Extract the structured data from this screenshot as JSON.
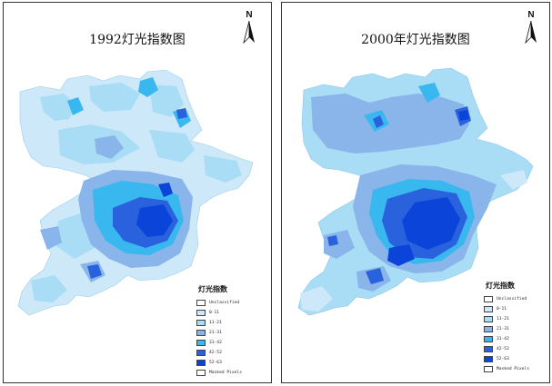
{
  "maps": [
    {
      "id": "1992",
      "title": "1992灯光指数图",
      "north_label": "N",
      "legend": {
        "title": "灯光指数",
        "items": [
          {
            "label": "Unclassified",
            "color": "#ffffff"
          },
          {
            "label": "0-11",
            "color": "#cde8f8"
          },
          {
            "label": "11-21",
            "color": "#a9dcf5"
          },
          {
            "label": "21-31",
            "color": "#8ab5ea"
          },
          {
            "label": "31-42",
            "color": "#38b8ee"
          },
          {
            "label": "42-52",
            "color": "#2a62de"
          },
          {
            "label": "52-63",
            "color": "#0a44d8"
          },
          {
            "label": "Masked Pixels",
            "color": "#ffffff"
          }
        ]
      }
    },
    {
      "id": "2000",
      "title": "2000年灯光指数图",
      "north_label": "N",
      "legend": {
        "title": "灯光指数",
        "items": [
          {
            "label": "Unclassified",
            "color": "#ffffff"
          },
          {
            "label": "0-11",
            "color": "#cde8f8"
          },
          {
            "label": "11-21",
            "color": "#a9dcf5"
          },
          {
            "label": "21-31",
            "color": "#8ab5ea"
          },
          {
            "label": "31-42",
            "color": "#38b8ee"
          },
          {
            "label": "42-52",
            "color": "#2a62de"
          },
          {
            "label": "52-63",
            "color": "#0a44d8"
          },
          {
            "label": "Masked Pixels",
            "color": "#ffffff"
          }
        ]
      }
    }
  ],
  "colors": {
    "class_0_11": "#cde8f8",
    "class_11_21": "#a9dcf5",
    "class_21_31": "#8ab5ea",
    "class_31_42": "#38b8ee",
    "class_42_52": "#2a62de",
    "class_52_63": "#0a44d8",
    "border": "#333333"
  }
}
